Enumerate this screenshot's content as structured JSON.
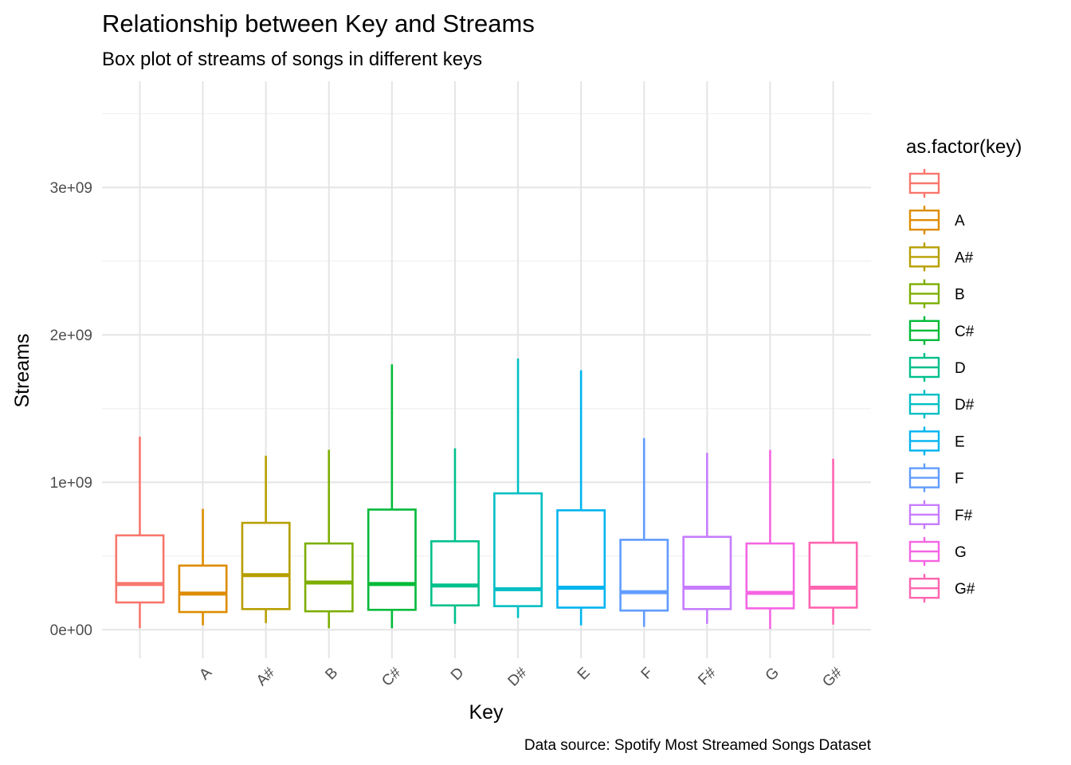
{
  "chart_data": {
    "type": "boxplot",
    "title": "Relationship between Key and Streams",
    "subtitle": "Box plot of streams of songs in different keys",
    "xlabel": "Key",
    "ylabel": "Streams",
    "caption": "Data source: Spotify Most Streamed Songs Dataset",
    "legend_title": "as.factor(key)",
    "legend_position": "right",
    "grid": true,
    "ylim": [
      -150000000,
      3720000000
    ],
    "yticks": [
      0,
      1000000000,
      2000000000,
      3000000000
    ],
    "ytick_labels": [
      "0e+00",
      "1e+09",
      "2e+09",
      "3e+09"
    ],
    "categories": [
      "",
      "A",
      "A#",
      "B",
      "C#",
      "D",
      "D#",
      "E",
      "F",
      "F#",
      "G",
      "G#"
    ],
    "colors": [
      "#F8766D",
      "#DE8C00",
      "#B79F00",
      "#7CAE00",
      "#00BA38",
      "#00C08B",
      "#00BFC4",
      "#00B4F0",
      "#619CFF",
      "#C77CFF",
      "#F564E3",
      "#FF64B0"
    ],
    "boxes": [
      {
        "key": "",
        "min": 10000000,
        "q1": 185000000,
        "median": 310000000,
        "q3": 640000000,
        "max": 1310000000
      },
      {
        "key": "A",
        "min": 30000000,
        "q1": 120000000,
        "median": 245000000,
        "q3": 435000000,
        "max": 820000000
      },
      {
        "key": "A#",
        "min": 45000000,
        "q1": 140000000,
        "median": 370000000,
        "q3": 725000000,
        "max": 1180000000
      },
      {
        "key": "B",
        "min": 10000000,
        "q1": 125000000,
        "median": 320000000,
        "q3": 585000000,
        "max": 1220000000
      },
      {
        "key": "C#",
        "min": 10000000,
        "q1": 135000000,
        "median": 310000000,
        "q3": 815000000,
        "max": 1800000000
      },
      {
        "key": "D",
        "min": 40000000,
        "q1": 165000000,
        "median": 300000000,
        "q3": 600000000,
        "max": 1230000000
      },
      {
        "key": "D#",
        "min": 80000000,
        "q1": 160000000,
        "median": 275000000,
        "q3": 925000000,
        "max": 1840000000
      },
      {
        "key": "E",
        "min": 30000000,
        "q1": 150000000,
        "median": 285000000,
        "q3": 810000000,
        "max": 1760000000
      },
      {
        "key": "F",
        "min": 20000000,
        "q1": 130000000,
        "median": 255000000,
        "q3": 610000000,
        "max": 1300000000
      },
      {
        "key": "F#",
        "min": 40000000,
        "q1": 140000000,
        "median": 285000000,
        "q3": 630000000,
        "max": 1200000000
      },
      {
        "key": "G",
        "min": 5000000,
        "q1": 145000000,
        "median": 250000000,
        "q3": 585000000,
        "max": 1220000000
      },
      {
        "key": "G#",
        "min": 35000000,
        "q1": 150000000,
        "median": 285000000,
        "q3": 590000000,
        "max": 1160000000
      }
    ]
  }
}
